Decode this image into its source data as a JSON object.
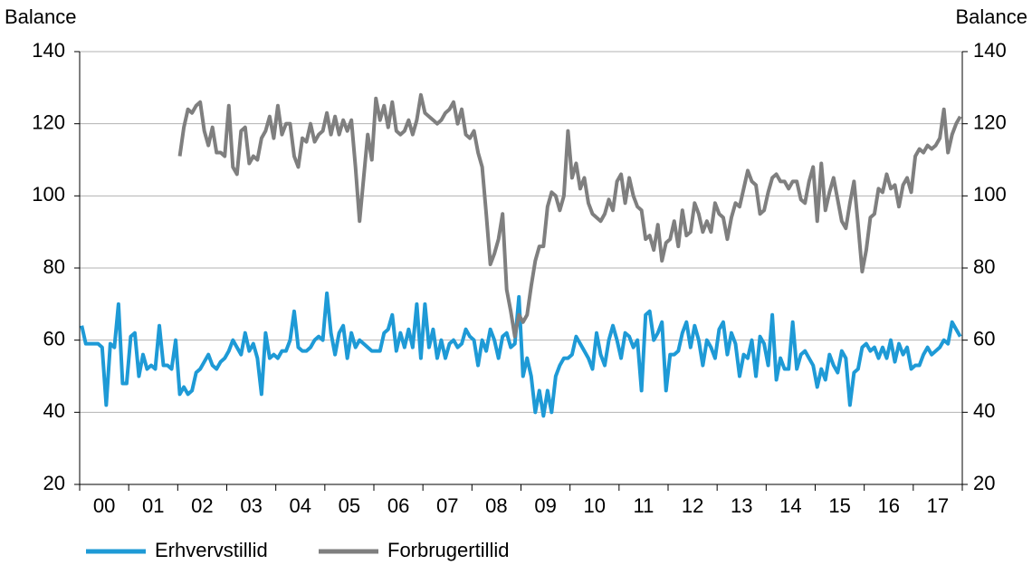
{
  "chart_data": {
    "type": "line",
    "y_axis_label": "Balance",
    "y2_axis_label": "Balance",
    "categories": [
      null,
      null,
      null,
      null,
      null,
      null,
      "00",
      null,
      null,
      null,
      null,
      null,
      null,
      null,
      null,
      null,
      null,
      null,
      "01",
      null,
      null,
      null,
      null,
      null,
      null,
      null,
      null,
      null,
      null,
      null,
      "02",
      null,
      null,
      null,
      null,
      null,
      null,
      null,
      null,
      null,
      null,
      null,
      "03",
      null,
      null,
      null,
      null,
      null,
      null,
      null,
      null,
      null,
      null,
      null,
      "04",
      null,
      null,
      null,
      null,
      null,
      null,
      null,
      null,
      null,
      null,
      null,
      "05",
      null,
      null,
      null,
      null,
      null,
      null,
      null,
      null,
      null,
      null,
      null,
      "06",
      null,
      null,
      null,
      null,
      null,
      null,
      null,
      null,
      null,
      null,
      null,
      "07",
      null,
      null,
      null,
      null,
      null,
      null,
      null,
      null,
      null,
      null,
      null,
      "08",
      null,
      null,
      null,
      null,
      null,
      null,
      null,
      null,
      null,
      null,
      null,
      "09",
      null,
      null,
      null,
      null,
      null,
      null,
      null,
      null,
      null,
      null,
      null,
      "10",
      null,
      null,
      null,
      null,
      null,
      null,
      null,
      null,
      null,
      null,
      null,
      "11",
      null,
      null,
      null,
      null,
      null,
      null,
      null,
      null,
      null,
      null,
      null,
      "12",
      null,
      null,
      null,
      null,
      null,
      null,
      null,
      null,
      null,
      null,
      null,
      "13",
      null,
      null,
      null,
      null,
      null,
      null,
      null,
      null,
      null,
      null,
      null,
      "14",
      null,
      null,
      null,
      null,
      null,
      null,
      null,
      null,
      null,
      null,
      null,
      "15",
      null,
      null,
      null,
      null,
      null,
      null,
      null,
      null,
      null,
      null,
      null,
      "16",
      null,
      null,
      null,
      null,
      null,
      null,
      null,
      null,
      null,
      null,
      null,
      "17",
      null,
      null,
      null,
      null,
      null
    ],
    "series": [
      {
        "name": "Erhvervstillid",
        "color": "#1e9ad6",
        "values": [
          64,
          59,
          59,
          59,
          59,
          58,
          42,
          59,
          58,
          70,
          48,
          48,
          61,
          62,
          50,
          56,
          52,
          53,
          52,
          64,
          53,
          53,
          52,
          60,
          45,
          47,
          45,
          46,
          51,
          52,
          54,
          56,
          53,
          52,
          54,
          55,
          57,
          60,
          58,
          56,
          62,
          57,
          59,
          55,
          45,
          62,
          55,
          56,
          55,
          57,
          57,
          60,
          68,
          58,
          57,
          57,
          58,
          60,
          61,
          60,
          73,
          62,
          56,
          62,
          64,
          55,
          62,
          58,
          60,
          59,
          58,
          57,
          57,
          57,
          62,
          63,
          67,
          57,
          62,
          58,
          63,
          58,
          70,
          55,
          70,
          58,
          63,
          55,
          60,
          55,
          59,
          60,
          58,
          59,
          63,
          61,
          60,
          53,
          60,
          57,
          63,
          60,
          55,
          61,
          62,
          58,
          59,
          72,
          50,
          55,
          50,
          40,
          46,
          39,
          46,
          40,
          50,
          53,
          55,
          55,
          56,
          61,
          59,
          57,
          55,
          52,
          62,
          56,
          53,
          60,
          64,
          60,
          55,
          62,
          61,
          58,
          60,
          46,
          67,
          68,
          60,
          62,
          65,
          46,
          56,
          56,
          57,
          62,
          65,
          58,
          64,
          60,
          53,
          60,
          58,
          55,
          63,
          65,
          56,
          62,
          59,
          50,
          56,
          55,
          60,
          50,
          61,
          59,
          53,
          67,
          49,
          55,
          52,
          52,
          65,
          52,
          56,
          57,
          55,
          53,
          47,
          52,
          49,
          56,
          53,
          51,
          57,
          55,
          42,
          51,
          52,
          58,
          59,
          57,
          58,
          55,
          58,
          55,
          60,
          54,
          59,
          56,
          58,
          52,
          53,
          53,
          56,
          58,
          56,
          57,
          58,
          60,
          59,
          65,
          63,
          61
        ]
      },
      {
        "name": "Forbrugertillid",
        "color": "#7f7f7f",
        "values": [
          null,
          null,
          null,
          null,
          null,
          null,
          null,
          null,
          null,
          null,
          null,
          null,
          null,
          null,
          null,
          null,
          null,
          null,
          null,
          null,
          null,
          null,
          null,
          null,
          111,
          119,
          124,
          123,
          125,
          126,
          118,
          114,
          119,
          112,
          112,
          111,
          125,
          108,
          106,
          118,
          119,
          109,
          111,
          110,
          116,
          118,
          122,
          116,
          125,
          117,
          120,
          120,
          111,
          108,
          116,
          115,
          120,
          115,
          117,
          118,
          123,
          117,
          122,
          117,
          121,
          118,
          121,
          108,
          93,
          105,
          117,
          110,
          127,
          121,
          125,
          119,
          126,
          118,
          117,
          118,
          121,
          117,
          121,
          128,
          123,
          122,
          121,
          120,
          121,
          123,
          124,
          126,
          120,
          124,
          117,
          116,
          118,
          112,
          108,
          95,
          81,
          84,
          88,
          95,
          74,
          68,
          61,
          67,
          65,
          67,
          75,
          82,
          86,
          86,
          97,
          101,
          100,
          96,
          100,
          118,
          105,
          109,
          102,
          105,
          98,
          95,
          94,
          93,
          95,
          99,
          96,
          104,
          106,
          98,
          105,
          100,
          97,
          96,
          88,
          89,
          85,
          92,
          82,
          87,
          88,
          93,
          86,
          96,
          89,
          90,
          98,
          95,
          90,
          93,
          90,
          98,
          95,
          94,
          88,
          94,
          98,
          97,
          102,
          107,
          104,
          103,
          95,
          96,
          101,
          105,
          106,
          104,
          104,
          102,
          104,
          104,
          99,
          98,
          104,
          108,
          93,
          109,
          96,
          101,
          105,
          99,
          93,
          91,
          98,
          104,
          92,
          79,
          85,
          94,
          95,
          102,
          101,
          106,
          102,
          103,
          97,
          103,
          105,
          101,
          111,
          113,
          112,
          114,
          113,
          114,
          116,
          124,
          112,
          117,
          120,
          122
        ]
      }
    ],
    "ylim": [
      20,
      140
    ],
    "yticks": [
      20,
      40,
      60,
      80,
      100,
      120,
      140
    ],
    "y2lim": [
      20,
      140
    ],
    "y2ticks": [
      20,
      40,
      60,
      80,
      100,
      120,
      140
    ],
    "grid": true,
    "legend": "bottom"
  }
}
